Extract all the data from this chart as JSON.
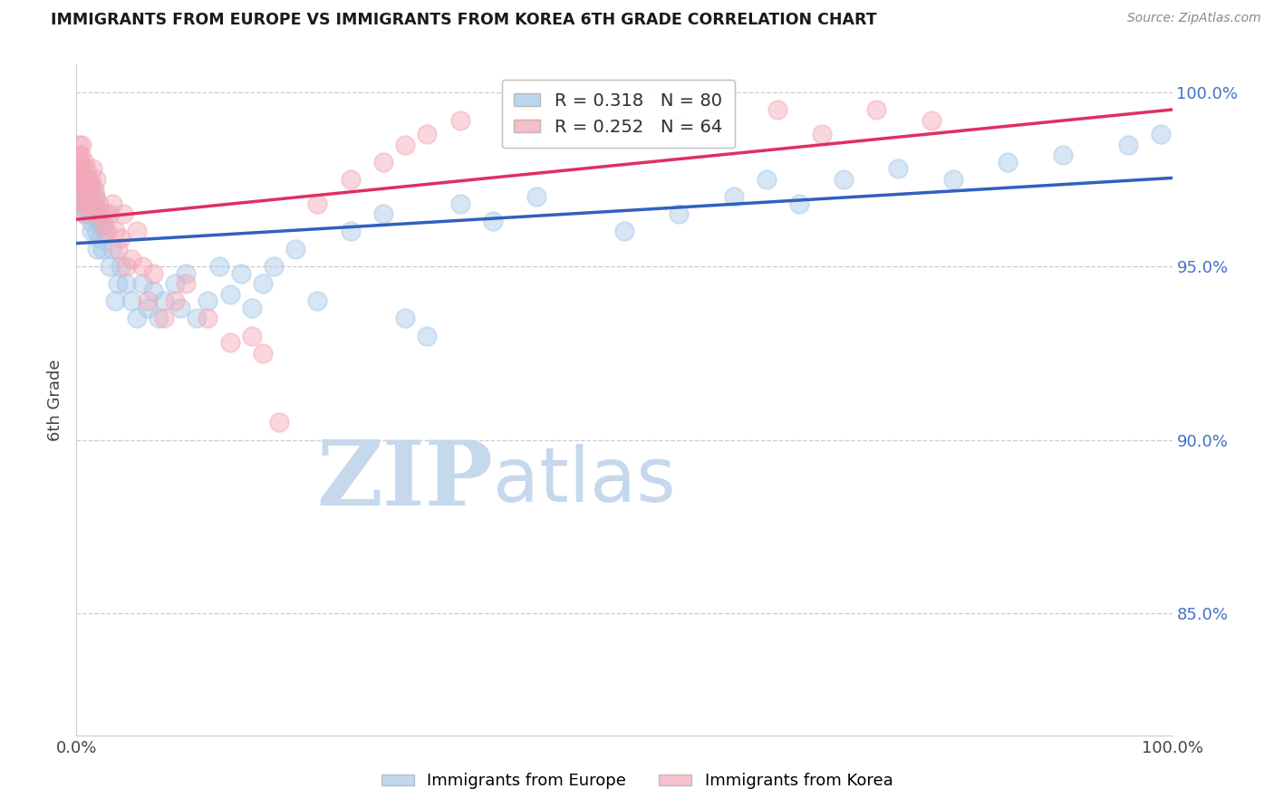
{
  "title": "IMMIGRANTS FROM EUROPE VS IMMIGRANTS FROM KOREA 6TH GRADE CORRELATION CHART",
  "source": "Source: ZipAtlas.com",
  "ylabel": "6th Grade",
  "xlim": [
    0.0,
    1.0
  ],
  "ylim": [
    0.815,
    1.008
  ],
  "yticks": [
    0.85,
    0.9,
    0.95,
    1.0
  ],
  "ytick_labels": [
    "85.0%",
    "90.0%",
    "95.0%",
    "100.0%"
  ],
  "xtick_labels": [
    "0.0%",
    "100.0%"
  ],
  "blue_R": 0.318,
  "blue_N": 80,
  "pink_R": 0.252,
  "pink_N": 64,
  "blue_color": "#a8c8e8",
  "pink_color": "#f4a8b8",
  "blue_line_color": "#3060c0",
  "pink_line_color": "#e03060",
  "watermark_zip": "ZIP",
  "watermark_atlas": "atlas",
  "watermark_color": "#c5d8ec",
  "legend_label_blue": "Immigrants from Europe",
  "legend_label_pink": "Immigrants from Korea",
  "blue_scatter_x": [
    0.002,
    0.003,
    0.004,
    0.004,
    0.005,
    0.005,
    0.006,
    0.006,
    0.007,
    0.007,
    0.008,
    0.008,
    0.009,
    0.009,
    0.01,
    0.01,
    0.011,
    0.011,
    0.012,
    0.012,
    0.013,
    0.013,
    0.014,
    0.015,
    0.015,
    0.016,
    0.017,
    0.018,
    0.019,
    0.02,
    0.021,
    0.022,
    0.024,
    0.025,
    0.027,
    0.03,
    0.033,
    0.035,
    0.038,
    0.04,
    0.045,
    0.05,
    0.055,
    0.06,
    0.065,
    0.07,
    0.075,
    0.08,
    0.09,
    0.095,
    0.1,
    0.11,
    0.12,
    0.13,
    0.14,
    0.15,
    0.16,
    0.17,
    0.18,
    0.2,
    0.22,
    0.25,
    0.28,
    0.3,
    0.32,
    0.35,
    0.38,
    0.42,
    0.5,
    0.55,
    0.6,
    0.63,
    0.66,
    0.7,
    0.75,
    0.8,
    0.85,
    0.9,
    0.96,
    0.99
  ],
  "blue_scatter_y": [
    0.98,
    0.978,
    0.975,
    0.972,
    0.971,
    0.969,
    0.975,
    0.97,
    0.973,
    0.968,
    0.972,
    0.965,
    0.97,
    0.966,
    0.974,
    0.968,
    0.965,
    0.97,
    0.968,
    0.974,
    0.963,
    0.967,
    0.96,
    0.972,
    0.965,
    0.968,
    0.97,
    0.96,
    0.955,
    0.963,
    0.958,
    0.962,
    0.955,
    0.96,
    0.965,
    0.95,
    0.955,
    0.94,
    0.945,
    0.95,
    0.945,
    0.94,
    0.935,
    0.945,
    0.938,
    0.943,
    0.935,
    0.94,
    0.945,
    0.938,
    0.948,
    0.935,
    0.94,
    0.95,
    0.942,
    0.948,
    0.938,
    0.945,
    0.95,
    0.955,
    0.94,
    0.96,
    0.965,
    0.935,
    0.93,
    0.968,
    0.963,
    0.97,
    0.96,
    0.965,
    0.97,
    0.975,
    0.968,
    0.975,
    0.978,
    0.975,
    0.98,
    0.982,
    0.985,
    0.988
  ],
  "pink_scatter_x": [
    0.001,
    0.001,
    0.002,
    0.002,
    0.003,
    0.003,
    0.004,
    0.004,
    0.005,
    0.005,
    0.006,
    0.006,
    0.007,
    0.007,
    0.008,
    0.008,
    0.009,
    0.01,
    0.01,
    0.011,
    0.012,
    0.013,
    0.014,
    0.015,
    0.016,
    0.017,
    0.018,
    0.019,
    0.02,
    0.022,
    0.025,
    0.028,
    0.03,
    0.033,
    0.035,
    0.038,
    0.04,
    0.043,
    0.045,
    0.05,
    0.055,
    0.06,
    0.065,
    0.07,
    0.08,
    0.09,
    0.1,
    0.12,
    0.14,
    0.16,
    0.17,
    0.185,
    0.22,
    0.25,
    0.28,
    0.3,
    0.32,
    0.35,
    0.42,
    0.55,
    0.64,
    0.68,
    0.73,
    0.78
  ],
  "pink_scatter_y": [
    0.982,
    0.978,
    0.985,
    0.975,
    0.98,
    0.975,
    0.982,
    0.97,
    0.978,
    0.985,
    0.972,
    0.975,
    0.98,
    0.965,
    0.975,
    0.968,
    0.978,
    0.975,
    0.968,
    0.972,
    0.97,
    0.975,
    0.968,
    0.978,
    0.972,
    0.97,
    0.975,
    0.965,
    0.968,
    0.965,
    0.962,
    0.96,
    0.965,
    0.968,
    0.96,
    0.955,
    0.958,
    0.965,
    0.95,
    0.952,
    0.96,
    0.95,
    0.94,
    0.948,
    0.935,
    0.94,
    0.945,
    0.935,
    0.928,
    0.93,
    0.925,
    0.905,
    0.968,
    0.975,
    0.98,
    0.985,
    0.988,
    0.992,
    0.99,
    0.99,
    0.995,
    0.988,
    0.995,
    0.992
  ]
}
